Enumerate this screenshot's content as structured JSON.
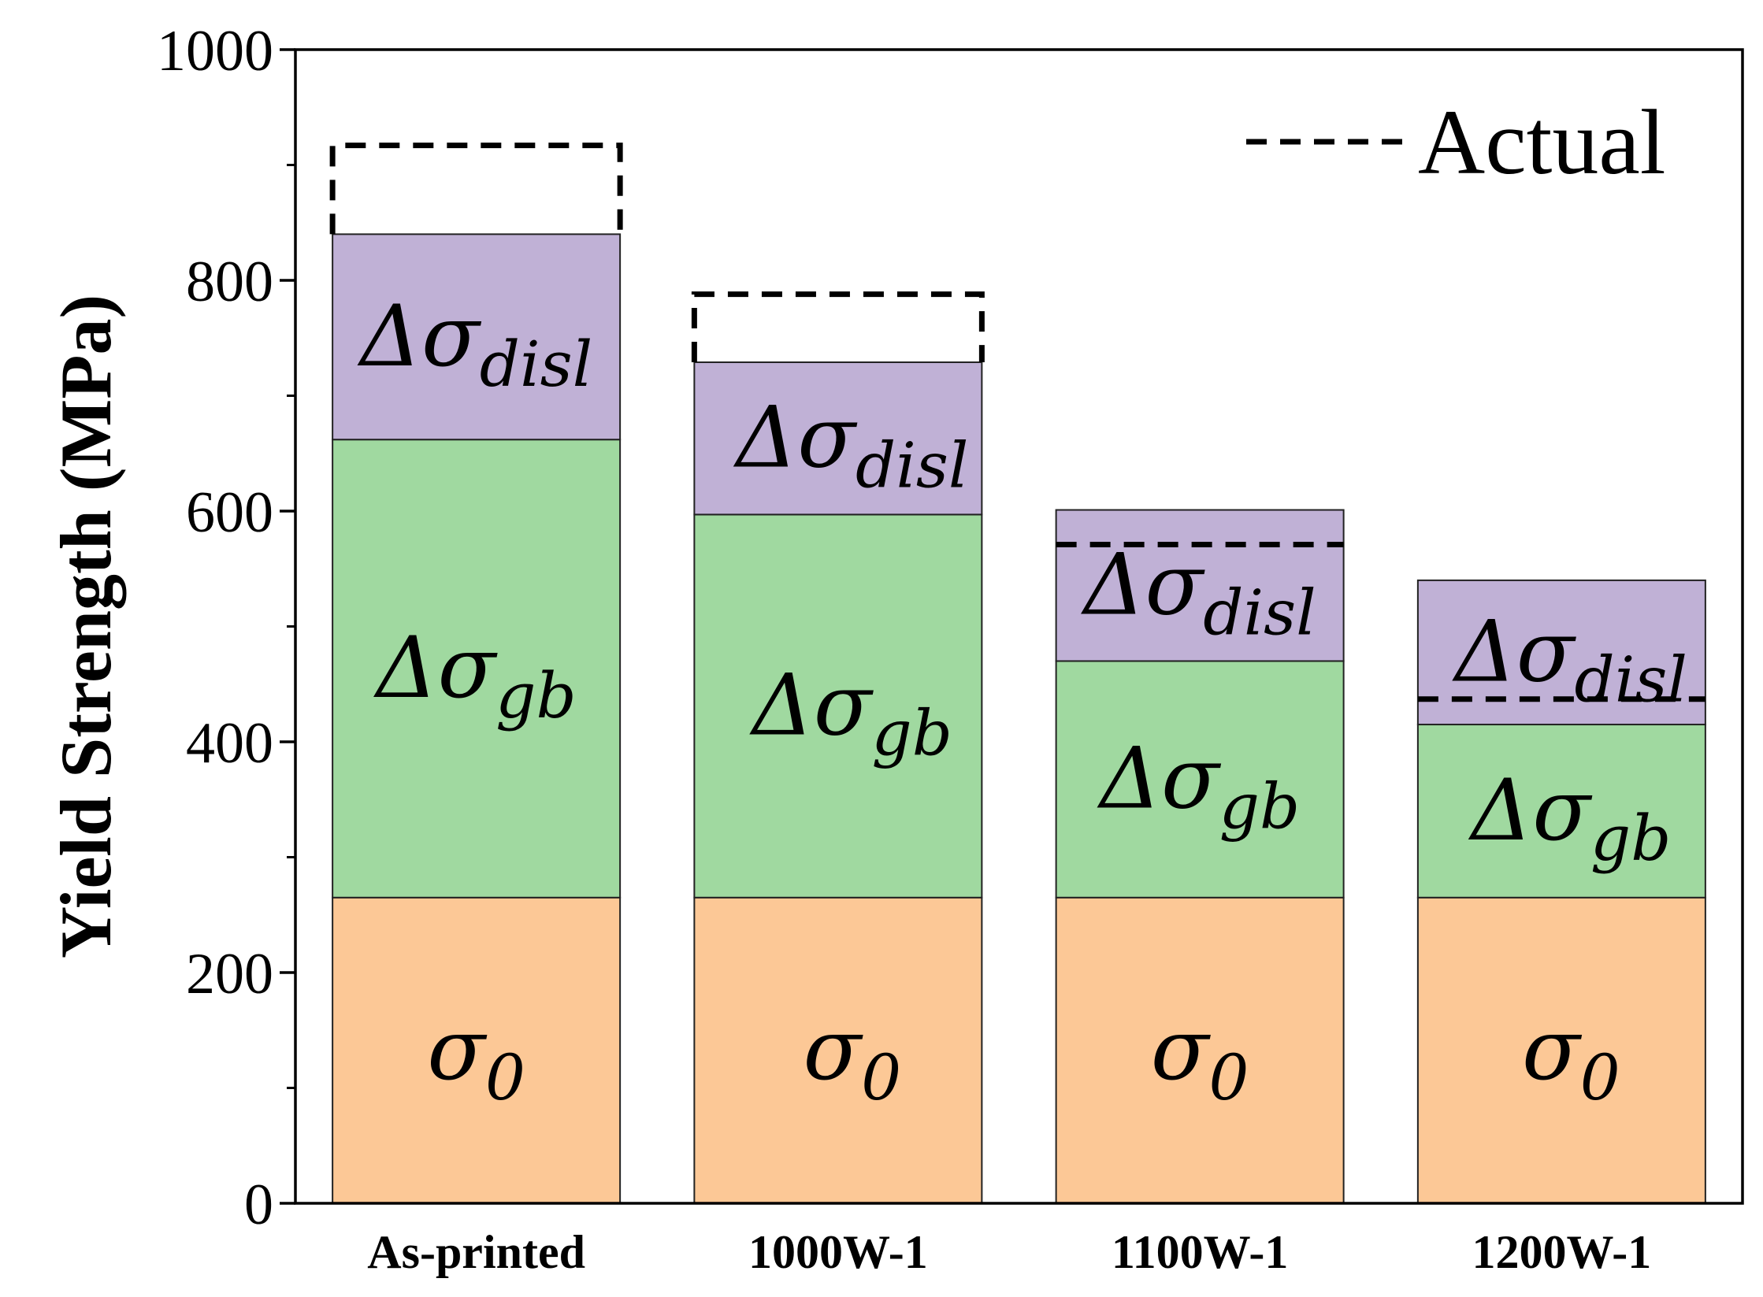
{
  "chart_data": {
    "type": "bar",
    "stacked": true,
    "categories": [
      "As-printed",
      "1000W-1",
      "1100W-1",
      "1200W-1"
    ],
    "ylabel": "Yield Strength (MPa)",
    "xlabel": "",
    "ylim": [
      0,
      1000
    ],
    "yticks": [
      0,
      200,
      400,
      600,
      800,
      1000
    ],
    "minor_ytick_step": 100,
    "series": [
      {
        "label_main": "σ",
        "label_sub": "0",
        "color": "#fcc896",
        "values": [
          265,
          265,
          265,
          265
        ]
      },
      {
        "label_main": "Δσ",
        "label_sub": "gb",
        "color": "#a0d9a0",
        "values": [
          397,
          332,
          205,
          150
        ]
      },
      {
        "label_main": "Δσ",
        "label_sub": "disl",
        "color": "#c0b1d6",
        "values": [
          178,
          132,
          131,
          125
        ]
      }
    ],
    "actual": {
      "legend_label": "Actual",
      "values": [
        917,
        788,
        571,
        437
      ]
    }
  }
}
